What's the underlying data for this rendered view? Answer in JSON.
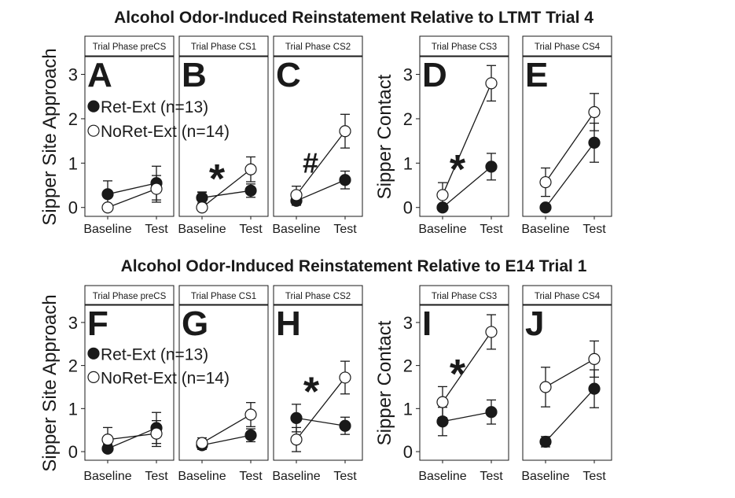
{
  "figure": {
    "legend": {
      "ret": "Ret-Ext (n=13)",
      "noret": "NoRet-Ext (n=14)"
    },
    "x_categories": [
      "Baseline",
      "Test"
    ],
    "y_ticks": [
      0,
      1,
      2,
      3
    ],
    "ylim": [
      -0.2,
      3.4
    ],
    "colors": {
      "ret": "#1a1a1a",
      "noret": "#ffffff",
      "stroke": "#1a1a1a"
    }
  },
  "chart_data": [
    {
      "type": "line",
      "title": "Alcohol Odor-Induced Reinstatement Relative to LTMT Trial 4",
      "ylabel_left": "Sipper Site Approach",
      "ylabel_right": "Sipper Contact",
      "panels": [
        {
          "letter": "A",
          "strip": "Trial Phase preCS",
          "series": [
            {
              "name": "Ret-Ext (n=13)",
              "values": [
                0.3,
                0.55
              ],
              "err": [
                0.3,
                0.38
              ]
            },
            {
              "name": "NoRet-Ext (n=14)",
              "values": [
                0.0,
                0.42
              ],
              "err": [
                0.0,
                0.3
              ]
            }
          ],
          "annotation": ""
        },
        {
          "letter": "B",
          "strip": "Trial Phase CS1",
          "series": [
            {
              "name": "Ret-Ext (n=13)",
              "values": [
                0.22,
                0.38
              ],
              "err": [
                0.12,
                0.15
              ]
            },
            {
              "name": "NoRet-Ext (n=14)",
              "values": [
                0.0,
                0.86
              ],
              "err": [
                0.35,
                0.28
              ]
            }
          ],
          "annotation": "*"
        },
        {
          "letter": "C",
          "strip": "Trial Phase CS2",
          "series": [
            {
              "name": "Ret-Ext (n=13)",
              "values": [
                0.15,
                0.62
              ],
              "err": [
                0.1,
                0.2
              ]
            },
            {
              "name": "NoRet-Ext (n=14)",
              "values": [
                0.28,
                1.72
              ],
              "err": [
                0.2,
                0.38
              ]
            }
          ],
          "annotation": "#"
        },
        {
          "letter": "D",
          "strip": "Trial Phase CS3",
          "series": [
            {
              "name": "Ret-Ext (n=13)",
              "values": [
                0.0,
                0.92
              ],
              "err": [
                0.0,
                0.3
              ]
            },
            {
              "name": "NoRet-Ext (n=14)",
              "values": [
                0.28,
                2.8
              ],
              "err": [
                0.28,
                0.4
              ]
            }
          ],
          "annotation": "*"
        },
        {
          "letter": "E",
          "strip": "Trial Phase CS4",
          "series": [
            {
              "name": "Ret-Ext (n=13)",
              "values": [
                0.0,
                1.46
              ],
              "err": [
                0.0,
                0.44
              ]
            },
            {
              "name": "NoRet-Ext (n=14)",
              "values": [
                0.57,
                2.15
              ],
              "err": [
                0.32,
                0.42
              ]
            }
          ],
          "annotation": ""
        }
      ]
    },
    {
      "type": "line",
      "title": "Alcohol Odor-Induced Reinstatement Relative to E14 Trial 1",
      "ylabel_left": "Sipper Site Approach",
      "ylabel_right": "Sipper Contact",
      "panels": [
        {
          "letter": "F",
          "strip": "Trial Phase preCS",
          "series": [
            {
              "name": "Ret-Ext (n=13)",
              "values": [
                0.07,
                0.55
              ],
              "err": [
                0.1,
                0.36
              ]
            },
            {
              "name": "NoRet-Ext (n=14)",
              "values": [
                0.28,
                0.42
              ],
              "err": [
                0.28,
                0.3
              ]
            }
          ],
          "annotation": ""
        },
        {
          "letter": "G",
          "strip": "Trial Phase CS1",
          "series": [
            {
              "name": "Ret-Ext (n=13)",
              "values": [
                0.15,
                0.38
              ],
              "err": [
                0.1,
                0.15
              ]
            },
            {
              "name": "NoRet-Ext (n=14)",
              "values": [
                0.2,
                0.86
              ],
              "err": [
                0.12,
                0.28
              ]
            }
          ],
          "annotation": ""
        },
        {
          "letter": "H",
          "strip": "Trial Phase CS2",
          "series": [
            {
              "name": "Ret-Ext (n=13)",
              "values": [
                0.78,
                0.6
              ],
              "err": [
                0.32,
                0.2
              ]
            },
            {
              "name": "NoRet-Ext (n=14)",
              "values": [
                0.28,
                1.72
              ],
              "err": [
                0.28,
                0.38
              ]
            }
          ],
          "annotation": "*"
        },
        {
          "letter": "I",
          "strip": "Trial Phase CS3",
          "series": [
            {
              "name": "Ret-Ext (n=13)",
              "values": [
                0.7,
                0.92
              ],
              "err": [
                0.33,
                0.28
              ]
            },
            {
              "name": "NoRet-Ext (n=14)",
              "values": [
                1.15,
                2.78
              ],
              "err": [
                0.36,
                0.4
              ]
            }
          ],
          "annotation": "*"
        },
        {
          "letter": "J",
          "strip": "Trial Phase CS4",
          "series": [
            {
              "name": "Ret-Ext (n=13)",
              "values": [
                0.23,
                1.46
              ],
              "err": [
                0.12,
                0.44
              ]
            },
            {
              "name": "NoRet-Ext (n=14)",
              "values": [
                1.5,
                2.15
              ],
              "err": [
                0.46,
                0.42
              ]
            }
          ],
          "annotation": ""
        }
      ]
    }
  ]
}
